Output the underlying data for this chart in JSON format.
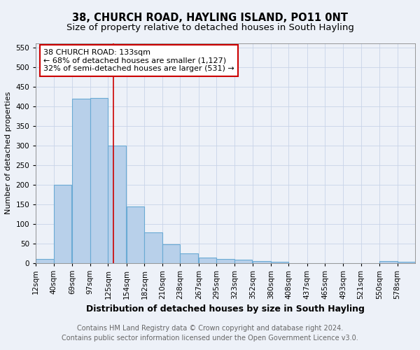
{
  "title": "38, CHURCH ROAD, HAYLING ISLAND, PO11 0NT",
  "subtitle": "Size of property relative to detached houses in South Hayling",
  "xlabel": "Distribution of detached houses by size in South Hayling",
  "ylabel": "Number of detached properties",
  "footer_line1": "Contains HM Land Registry data © Crown copyright and database right 2024.",
  "footer_line2": "Contains public sector information licensed under the Open Government Licence v3.0.",
  "bin_labels": [
    "12sqm",
    "40sqm",
    "69sqm",
    "97sqm",
    "125sqm",
    "154sqm",
    "182sqm",
    "210sqm",
    "238sqm",
    "267sqm",
    "295sqm",
    "323sqm",
    "352sqm",
    "380sqm",
    "408sqm",
    "437sqm",
    "465sqm",
    "493sqm",
    "521sqm",
    "550sqm",
    "578sqm"
  ],
  "bar_heights": [
    10,
    200,
    418,
    420,
    300,
    143,
    78,
    48,
    25,
    13,
    10,
    8,
    4,
    3,
    0,
    0,
    0,
    0,
    0,
    5,
    3
  ],
  "bar_color": "#b8d0ea",
  "bar_edgecolor": "#6aaad4",
  "bar_linewidth": 0.8,
  "grid_color": "#c8d4e8",
  "background_color": "#edf1f8",
  "annotation_line1": "38 CHURCH ROAD: 133sqm",
  "annotation_line2": "← 68% of detached houses are smaller (1,127)",
  "annotation_line3": "32% of semi-detached houses are larger (531) →",
  "annotation_box_edgecolor": "#cc0000",
  "annotation_box_facecolor": "#ffffff",
  "red_line_x": 133,
  "red_line_color": "#cc0000",
  "ylim": [
    0,
    560
  ],
  "yticks": [
    0,
    50,
    100,
    150,
    200,
    250,
    300,
    350,
    400,
    450,
    500,
    550
  ],
  "title_fontsize": 10.5,
  "subtitle_fontsize": 9.5,
  "xlabel_fontsize": 9,
  "ylabel_fontsize": 8,
  "tick_fontsize": 7.5,
  "annotation_fontsize": 8,
  "footer_fontsize": 7,
  "bin_width": 28
}
